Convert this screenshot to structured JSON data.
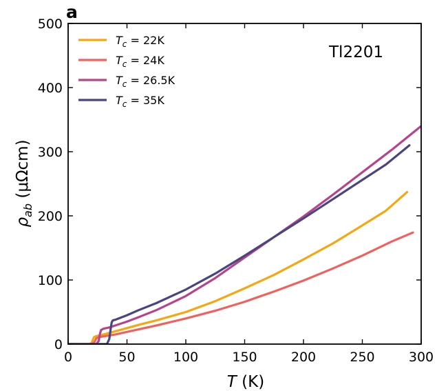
{
  "chart_data": {
    "type": "line",
    "panel_label": "a",
    "annotation": "Tl2201",
    "xlabel": {
      "symbol": "T",
      "unit": "(K)"
    },
    "ylabel": {
      "symbol": "ρ",
      "subscript": "ab",
      "unit": "(μΩcm)"
    },
    "xlim": [
      0,
      300
    ],
    "ylim": [
      0,
      500
    ],
    "xticks": [
      0,
      50,
      100,
      150,
      200,
      250,
      300
    ],
    "yticks": [
      0,
      100,
      200,
      300,
      400,
      500
    ],
    "grid": false,
    "legend_position": "top-left",
    "series": [
      {
        "name": "Tc = 22K",
        "label_parts": {
          "symbol": "T",
          "subscript": "c",
          "value": " = 22K"
        },
        "color": "#f5a70f",
        "x": [
          0,
          18,
          20,
          22,
          25,
          30,
          40,
          50,
          60,
          75,
          100,
          125,
          150,
          175,
          200,
          225,
          250,
          270,
          288
        ],
        "y": [
          0,
          0,
          2,
          11,
          13,
          15,
          20,
          25,
          30,
          37,
          50,
          67,
          87,
          108,
          132,
          157,
          185,
          208,
          237
        ]
      },
      {
        "name": "Tc = 24K",
        "label_parts": {
          "symbol": "T",
          "subscript": "c",
          "value": " = 24K"
        },
        "color": "#f0605d",
        "x": [
          0,
          20,
          22,
          24,
          26,
          30,
          40,
          50,
          60,
          75,
          100,
          125,
          150,
          175,
          200,
          225,
          250,
          275,
          293
        ],
        "y": [
          0,
          0,
          2,
          9,
          11,
          12,
          15,
          19,
          23,
          29,
          40,
          52,
          66,
          82,
          99,
          118,
          138,
          160,
          174
        ]
      },
      {
        "name": "Tc = 26.5K",
        "label_parts": {
          "symbol": "T",
          "subscript": "c",
          "value": " = 26.5K"
        },
        "color": "#b6448b",
        "x": [
          0,
          24,
          26,
          27,
          28,
          30,
          35,
          40,
          50,
          60,
          75,
          100,
          125,
          150,
          175,
          200,
          225,
          250,
          275,
          300
        ],
        "y": [
          0,
          0,
          5,
          16,
          22,
          24,
          26,
          29,
          35,
          42,
          53,
          75,
          103,
          135,
          167,
          199,
          233,
          268,
          303,
          340
        ]
      },
      {
        "name": "Tc = 35K",
        "label_parts": {
          "symbol": "T",
          "subscript": "c",
          "value": " = 35K"
        },
        "color": "#4a4480",
        "x": [
          0,
          33,
          35,
          36,
          37,
          38,
          40,
          50,
          60,
          75,
          100,
          125,
          150,
          175,
          200,
          225,
          250,
          270,
          290
        ],
        "y": [
          0,
          0,
          8,
          22,
          34,
          37,
          38,
          45,
          53,
          64,
          85,
          110,
          138,
          167,
          196,
          226,
          256,
          280,
          310
        ]
      }
    ]
  }
}
